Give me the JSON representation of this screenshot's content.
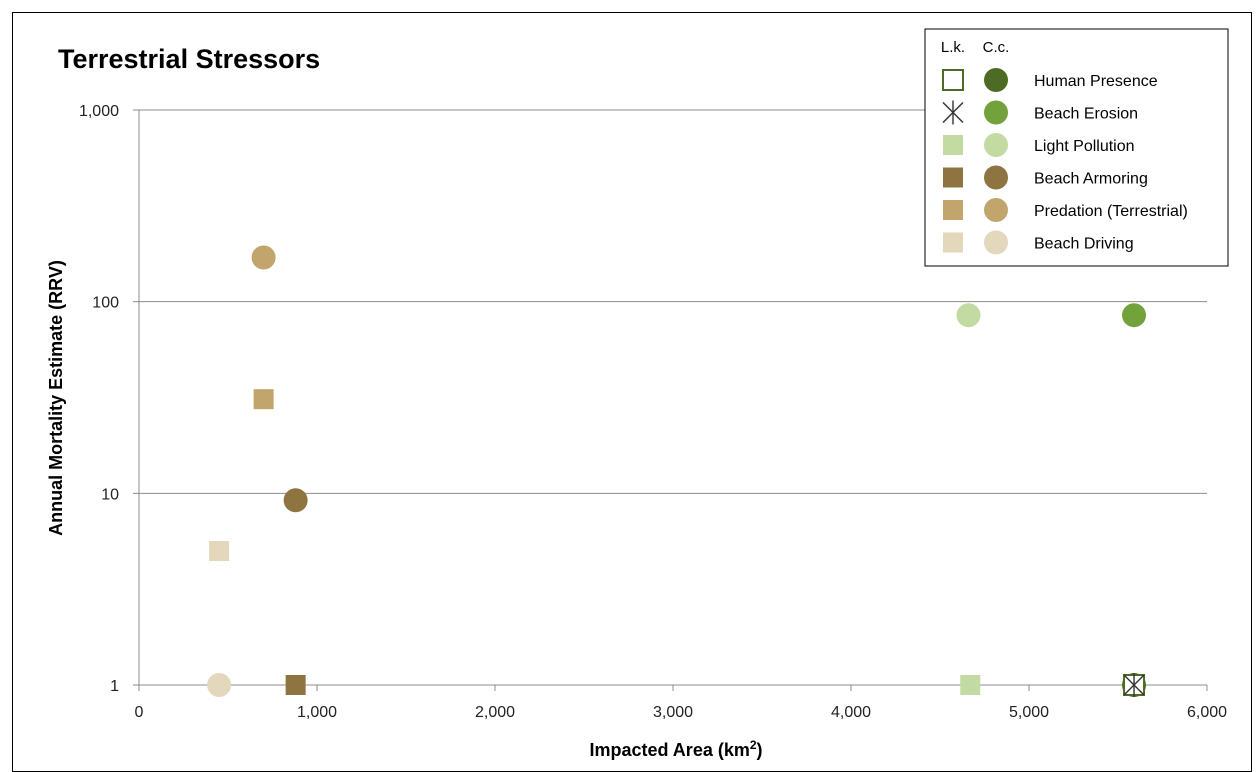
{
  "chart_data": {
    "type": "scatter",
    "title": "Terrestrial Stressors",
    "xlabel": "Impacted Area (km",
    "xlabel_sup": "2",
    "xlabel_end": ")",
    "ylabel": "Annual Mortality Estimate (RRV)",
    "xlim": [
      0,
      6000
    ],
    "ylim": [
      1,
      1000
    ],
    "yscale": "log",
    "x_ticks": [
      {
        "value": 0,
        "label": "0"
      },
      {
        "value": 1000,
        "label": "1,000"
      },
      {
        "value": 2000,
        "label": "2,000"
      },
      {
        "value": 3000,
        "label": "3,000"
      },
      {
        "value": 4000,
        "label": "4,000"
      },
      {
        "value": 5000,
        "label": "5,000"
      },
      {
        "value": 6000,
        "label": "6,000"
      }
    ],
    "y_ticks": [
      {
        "value": 1,
        "label": "1"
      },
      {
        "value": 10,
        "label": "10"
      },
      {
        "value": 100,
        "label": "100"
      },
      {
        "value": 1000,
        "label": "1,000"
      }
    ],
    "grid": "horizontal",
    "legend": {
      "position": "top-right",
      "headers": [
        "L.k.",
        "C.c."
      ]
    },
    "series": [
      {
        "name": "Human Presence",
        "color": "#4e6b23",
        "points": {
          "lk": [
            [
              5590,
              1
            ]
          ],
          "cc": [
            [
              5590,
              1
            ]
          ]
        },
        "lk_marker": "hollow-square"
      },
      {
        "name": "Beach Erosion",
        "color": "#73a13c",
        "points": {
          "lk": [
            [
              5590,
              1
            ]
          ],
          "cc": [
            [
              5590,
              85
            ]
          ]
        },
        "lk_marker": "star"
      },
      {
        "name": "Light Pollution",
        "color": "#c3daa3",
        "points": {
          "lk": [
            [
              4670,
              1
            ]
          ],
          "cc": [
            [
              4660,
              85
            ]
          ]
        },
        "lk_marker": "square"
      },
      {
        "name": "Beach Armoring",
        "color": "#8d7440",
        "points": {
          "lk": [
            [
              880,
              1
            ]
          ],
          "cc": [
            [
              880,
              9.2
            ]
          ]
        },
        "lk_marker": "square"
      },
      {
        "name": "Predation (Terrestrial)",
        "color": "#c2a56c",
        "points": {
          "lk": [
            [
              700,
              31
            ]
          ],
          "cc": [
            [
              700,
              170
            ]
          ]
        },
        "lk_marker": "square"
      },
      {
        "name": "Beach Driving",
        "color": "#e3d7bc",
        "points": {
          "lk": [
            [
              450,
              5
            ]
          ],
          "cc": [
            [
              450,
              1
            ]
          ]
        },
        "lk_marker": "square"
      }
    ]
  }
}
